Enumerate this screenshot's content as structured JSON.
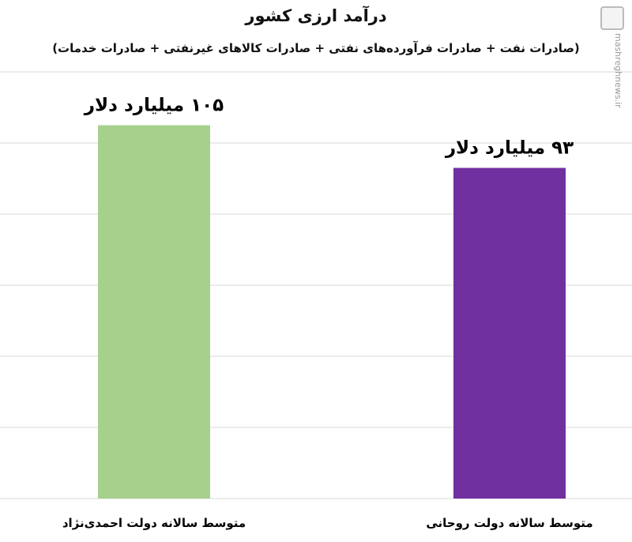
{
  "chart_data": {
    "type": "bar",
    "title": "درآمد ارزی کشور",
    "subtitle": "(صادرات نفت + صادرات فرآورده‌های نفتی + صادرات کالاهای غیرنفتی + صادرات خدمات)",
    "categories": [
      "متوسط سالانه دولت احمدی‌نژاد",
      "متوسط سالانه دولت روحانی"
    ],
    "values": [
      105,
      93
    ],
    "data_labels": [
      "۱۰۵ میلیارد دلار",
      "۹۳ میلیارد دلار"
    ],
    "colors": [
      "#a8d08d",
      "#7030a0"
    ],
    "ylim": [
      0,
      120
    ],
    "grid": true,
    "xlabel": "",
    "ylabel": ""
  },
  "watermark": {
    "text": "mashreghnews.ir",
    "logo": "mashregh-logo"
  }
}
